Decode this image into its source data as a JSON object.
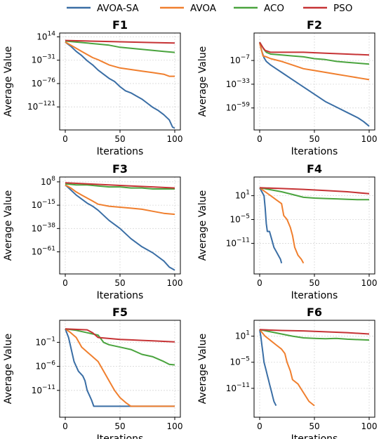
{
  "legend": [
    {
      "label": "AVOA-SA",
      "color": "#3a6ea5"
    },
    {
      "label": "AVOA",
      "color": "#f07f2e"
    },
    {
      "label": "ACO",
      "color": "#4aa43e"
    },
    {
      "label": "PSO",
      "color": "#c63335"
    }
  ],
  "chart_data": [
    {
      "type": "line",
      "title": "F1",
      "xlabel": "Iterations",
      "ylabel": "Average Value",
      "yscale": "log",
      "xlim": [
        0,
        100
      ],
      "ylim_exp": [
        -160,
        16
      ],
      "xticks": [
        0,
        50,
        100
      ],
      "yticks": [
        {
          "base": "10",
          "exp": "14",
          "v": 14
        },
        {
          "base": "10",
          "exp": "−31",
          "v": -31
        },
        {
          "base": "10",
          "exp": "−76",
          "v": -76
        },
        {
          "base": "10",
          "exp": "−121",
          "v": -121
        }
      ],
      "series": [
        {
          "name": "AVOA-SA",
          "x": [
            0,
            5,
            10,
            15,
            20,
            25,
            30,
            35,
            40,
            45,
            50,
            55,
            60,
            65,
            70,
            75,
            80,
            85,
            90,
            95,
            98,
            100
          ],
          "log10_y": [
            4,
            -4,
            -14,
            -22,
            -32,
            -40,
            -50,
            -58,
            -66,
            -72,
            -82,
            -90,
            -94,
            -100,
            -106,
            -114,
            -122,
            -128,
            -136,
            -146,
            -160,
            -162
          ]
        },
        {
          "name": "AVOA",
          "x": [
            0,
            5,
            10,
            15,
            20,
            25,
            30,
            35,
            40,
            50,
            60,
            70,
            80,
            90,
            95,
            100
          ],
          "log10_y": [
            4,
            -2,
            -8,
            -14,
            -20,
            -26,
            -30,
            -35,
            -40,
            -46,
            -49,
            -52,
            -55,
            -58,
            -62,
            -62
          ]
        },
        {
          "name": "ACO",
          "x": [
            0,
            10,
            20,
            30,
            40,
            50,
            60,
            70,
            80,
            90,
            100
          ],
          "log10_y": [
            6,
            4,
            2,
            0,
            -2,
            -6,
            -8,
            -10,
            -12,
            -14,
            -16
          ]
        },
        {
          "name": "PSO",
          "x": [
            0,
            20,
            40,
            60,
            80,
            100
          ],
          "log10_y": [
            7,
            6,
            5,
            4,
            3,
            2
          ]
        }
      ]
    },
    {
      "type": "line",
      "title": "F2",
      "xlabel": "Iterations",
      "ylabel": "Average Value",
      "yscale": "log",
      "xlim": [
        0,
        100
      ],
      "ylim_exp": [
        -80,
        20
      ],
      "xticks": [
        0,
        50,
        100
      ],
      "yticks": [
        {
          "base": "10",
          "exp": "−7",
          "v": -7
        },
        {
          "base": "10",
          "exp": "−33",
          "v": -33
        },
        {
          "base": "10",
          "exp": "−59",
          "v": -59
        }
      ],
      "series": [
        {
          "name": "AVOA-SA",
          "x": [
            0,
            2,
            4,
            6,
            10,
            15,
            20,
            30,
            40,
            50,
            60,
            70,
            80,
            90,
            95,
            100
          ],
          "log10_y": [
            13,
            3,
            -4,
            -8,
            -12,
            -16,
            -20,
            -28,
            -36,
            -44,
            -52,
            -58,
            -64,
            -70,
            -74,
            -79
          ]
        },
        {
          "name": "AVOA",
          "x": [
            0,
            3,
            6,
            10,
            20,
            30,
            40,
            50,
            60,
            70,
            80,
            90,
            100
          ],
          "log10_y": [
            12,
            -2,
            -3,
            -5,
            -8,
            -12,
            -16,
            -18,
            -20,
            -22,
            -24,
            -26,
            -28
          ]
        },
        {
          "name": "ACO",
          "x": [
            0,
            4,
            6,
            10,
            20,
            30,
            40,
            50,
            60,
            70,
            80,
            90,
            100
          ],
          "log10_y": [
            13,
            5,
            2,
            0,
            -1,
            -2,
            -3,
            -5,
            -6,
            -8,
            -9,
            -10,
            -11
          ]
        },
        {
          "name": "PSO",
          "x": [
            0,
            3,
            5,
            10,
            20,
            40,
            60,
            80,
            100
          ],
          "log10_y": [
            13,
            7,
            4,
            2,
            2,
            2,
            1,
            0,
            -1
          ]
        }
      ]
    },
    {
      "type": "line",
      "title": "F3",
      "xlabel": "Iterations",
      "ylabel": "Average Value",
      "yscale": "log",
      "xlim": [
        0,
        100
      ],
      "ylim_exp": [
        -80,
        10
      ],
      "xticks": [
        0,
        50,
        100
      ],
      "yticks": [
        {
          "base": "10",
          "exp": "8",
          "v": 8
        },
        {
          "base": "10",
          "exp": "−15",
          "v": -15
        },
        {
          "base": "10",
          "exp": "−38",
          "v": -38
        },
        {
          "base": "10",
          "exp": "−61",
          "v": -61
        }
      ],
      "series": [
        {
          "name": "AVOA-SA",
          "x": [
            0,
            5,
            10,
            15,
            20,
            25,
            30,
            40,
            50,
            60,
            70,
            80,
            90,
            95,
            100
          ],
          "log10_y": [
            5,
            0,
            -5,
            -9,
            -13,
            -16,
            -20,
            -30,
            -38,
            -48,
            -56,
            -62,
            -70,
            -76,
            -79
          ]
        },
        {
          "name": "AVOA",
          "x": [
            0,
            5,
            10,
            15,
            20,
            25,
            30,
            40,
            50,
            60,
            70,
            80,
            90,
            100
          ],
          "log10_y": [
            5,
            2,
            -2,
            -5,
            -8,
            -11,
            -14,
            -16,
            -17,
            -18,
            -19,
            -21,
            -23,
            -24
          ]
        },
        {
          "name": "ACO",
          "x": [
            0,
            10,
            20,
            30,
            40,
            50,
            60,
            70,
            80,
            90,
            100
          ],
          "log10_y": [
            6,
            5,
            5,
            4,
            3,
            3,
            2,
            2,
            1,
            1,
            1
          ]
        },
        {
          "name": "PSO",
          "x": [
            0,
            20,
            40,
            60,
            80,
            100
          ],
          "log10_y": [
            7,
            6,
            5,
            4,
            3,
            2
          ]
        }
      ]
    },
    {
      "type": "line",
      "title": "F4",
      "xlabel": "Iterations",
      "ylabel": "Average Value",
      "yscale": "log",
      "xlim": [
        0,
        100
      ],
      "ylim_exp": [
        -18,
        5
      ],
      "xticks": [
        0,
        50,
        100
      ],
      "yticks": [
        {
          "base": "10",
          "exp": "1",
          "v": 1
        },
        {
          "base": "10",
          "exp": "−5",
          "v": -5
        },
        {
          "base": "10",
          "exp": "−11",
          "v": -11
        }
      ],
      "series": [
        {
          "name": "AVOA-SA",
          "x": [
            0,
            2,
            4,
            5,
            6,
            7,
            9,
            11,
            13,
            15,
            17,
            19,
            20
          ],
          "log10_y": [
            3,
            2,
            1,
            -2,
            -6,
            -8,
            -8,
            -10,
            -12,
            -13,
            -14,
            -15,
            -16
          ]
        },
        {
          "name": "AVOA",
          "x": [
            0,
            5,
            10,
            15,
            20,
            22,
            25,
            28,
            30,
            32,
            35,
            38,
            40
          ],
          "log10_y": [
            3,
            2,
            1,
            0,
            -1,
            -4,
            -5,
            -7,
            -9,
            -12,
            -14,
            -15,
            -16
          ]
        },
        {
          "name": "ACO",
          "x": [
            0,
            10,
            20,
            30,
            40,
            50,
            60,
            70,
            80,
            90,
            100
          ],
          "log10_y": [
            3,
            2.5,
            2,
            1.3,
            0.6,
            0.4,
            0.3,
            0.2,
            0.1,
            0,
            0
          ]
        },
        {
          "name": "PSO",
          "x": [
            0,
            20,
            40,
            60,
            80,
            100
          ],
          "log10_y": [
            3,
            2.8,
            2.6,
            2.3,
            2,
            1.5
          ]
        }
      ]
    },
    {
      "type": "line",
      "title": "F5",
      "xlabel": "Iterations",
      "ylabel": "Average Value",
      "yscale": "log",
      "xlim": [
        0,
        100
      ],
      "ylim_exp": [
        -16,
        3
      ],
      "xticks": [
        0,
        50,
        100
      ],
      "yticks": [
        {
          "base": "10",
          "exp": "−1",
          "v": -1
        },
        {
          "base": "10",
          "exp": "−6",
          "v": -6
        },
        {
          "base": "10",
          "exp": "−11",
          "v": -11
        }
      ],
      "series": [
        {
          "name": "AVOA-SA",
          "x": [
            0,
            3,
            6,
            8,
            10,
            12,
            14,
            16,
            18,
            20,
            22,
            24,
            26,
            30,
            40,
            60,
            80,
            100
          ],
          "log10_y": [
            1.8,
            0,
            -3,
            -5,
            -6,
            -7,
            -7.5,
            -8,
            -9,
            -11,
            -12,
            -13,
            -14.3,
            -14.3,
            -14.3,
            -14.3,
            -14.3,
            -14.3
          ]
        },
        {
          "name": "AVOA",
          "x": [
            0,
            5,
            10,
            15,
            20,
            25,
            30,
            35,
            40,
            45,
            50,
            55,
            58,
            60,
            70,
            80,
            90,
            100
          ],
          "log10_y": [
            1.8,
            1,
            0,
            -2,
            -3,
            -4,
            -5,
            -7,
            -9,
            -11,
            -12.5,
            -13.5,
            -14,
            -14.3,
            -14.3,
            -14.3,
            -14.3,
            -14.3
          ]
        },
        {
          "name": "ACO",
          "x": [
            0,
            10,
            20,
            30,
            35,
            40,
            50,
            60,
            70,
            80,
            90,
            95,
            100
          ],
          "log10_y": [
            1.8,
            1.5,
            1,
            0.5,
            -1,
            -1.5,
            -2,
            -2.5,
            -3.5,
            -4,
            -5,
            -5.6,
            -5.7
          ]
        },
        {
          "name": "PSO",
          "x": [
            0,
            20,
            25,
            30,
            40,
            50,
            60,
            70,
            80,
            90,
            100
          ],
          "log10_y": [
            1.8,
            1.6,
            1,
            0,
            -0.2,
            -0.4,
            -0.5,
            -0.6,
            -0.7,
            -0.8,
            -0.9
          ]
        }
      ]
    },
    {
      "type": "line",
      "title": "F6",
      "xlabel": "Iterations",
      "ylabel": "Average Value",
      "yscale": "log",
      "xlim": [
        0,
        100
      ],
      "ylim_exp": [
        -17,
        4
      ],
      "xticks": [
        0,
        50,
        100
      ],
      "yticks": [
        {
          "base": "10",
          "exp": "1",
          "v": 1
        },
        {
          "base": "10",
          "exp": "−5",
          "v": -5
        },
        {
          "base": "10",
          "exp": "−11",
          "v": -11
        }
      ],
      "series": [
        {
          "name": "AVOA-SA",
          "x": [
            0,
            1,
            2,
            3,
            4,
            5,
            6,
            7,
            8,
            9,
            10,
            11,
            12,
            13,
            15
          ],
          "log10_y": [
            2.5,
            1,
            -1,
            -3,
            -5,
            -6,
            -7,
            -8,
            -9,
            -10,
            -11,
            -12,
            -13,
            -14,
            -15
          ]
        },
        {
          "name": "AVOA",
          "x": [
            0,
            5,
            10,
            15,
            20,
            23,
            25,
            28,
            30,
            35,
            40,
            45,
            50
          ],
          "log10_y": [
            2.5,
            1,
            0,
            -1,
            -2,
            -3,
            -5,
            -7,
            -9,
            -10,
            -12,
            -14,
            -15
          ]
        },
        {
          "name": "ACO",
          "x": [
            0,
            10,
            20,
            30,
            40,
            50,
            60,
            70,
            80,
            90,
            100
          ],
          "log10_y": [
            2.5,
            2,
            1.5,
            1,
            0.6,
            0.5,
            0.4,
            0.5,
            0.3,
            0.2,
            0.1
          ]
        },
        {
          "name": "PSO",
          "x": [
            0,
            20,
            40,
            60,
            80,
            100
          ],
          "log10_y": [
            2.5,
            2.3,
            2.2,
            2,
            1.8,
            1.5
          ]
        }
      ]
    }
  ]
}
